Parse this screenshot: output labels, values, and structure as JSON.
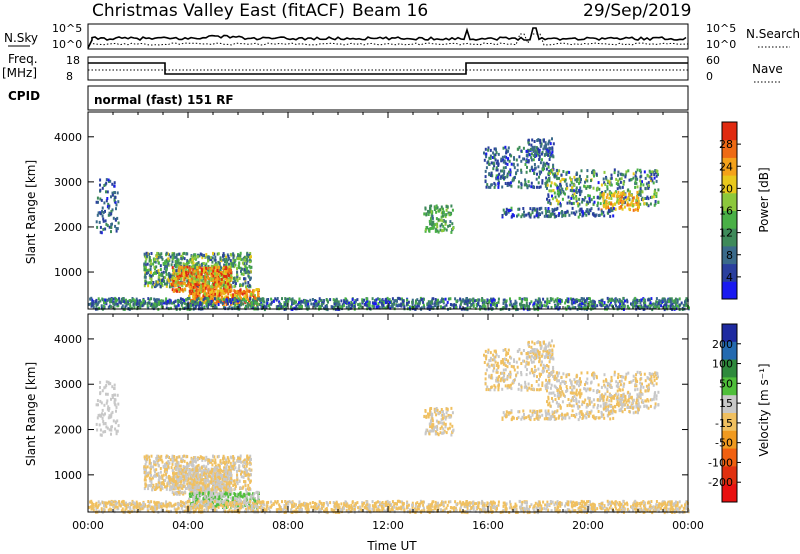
{
  "header": {
    "title": "Christmas Valley East (fitACF)",
    "beam": "Beam 16",
    "date": "29/Sep/2019"
  },
  "top_panels": {
    "nsky": {
      "label": "N.Sky",
      "tick_top": "10^5",
      "tick_bottom": "10^0",
      "right_label": "N.Search",
      "right_tick_top": "10^5",
      "right_tick_bottom": "10^0"
    },
    "freq": {
      "label_line1": "Freq.",
      "label_line2": "[MHz]",
      "tick_top": "18",
      "tick_bottom": "8",
      "right_label": "Nave",
      "right_tick_top": "60",
      "right_tick_bottom": "0"
    },
    "cpid": {
      "label": "CPID",
      "mode_text": "normal (fast) 151 RF"
    }
  },
  "chart_data": [
    {
      "type": "scatter",
      "name": "power-panel",
      "ylabel": "Slant Range [km]",
      "xlabel": "",
      "ylim": [
        180,
        4550
      ],
      "yticks": [
        1000,
        2000,
        3000,
        4000
      ],
      "xlim": [
        0,
        24
      ],
      "colorbar": {
        "label": "Power [dB]",
        "ticks": [
          "4",
          "8",
          "12",
          "16",
          "20",
          "24",
          "28"
        ],
        "colors": [
          "#1a1af0",
          "#2a3f9e",
          "#3a6a8a",
          "#3e8a5a",
          "#49b046",
          "#8cc83c",
          "#e8c81c",
          "#f4a21a",
          "#ee6a14",
          "#e02a10"
        ]
      }
    },
    {
      "type": "scatter",
      "name": "velocity-panel",
      "ylabel": "Slant Range [km]",
      "xlabel": "Time UT",
      "ylim": [
        180,
        4550
      ],
      "yticks": [
        1000,
        2000,
        3000,
        4000
      ],
      "xlim": [
        0,
        24
      ],
      "xticks": [
        "00:00",
        "04:00",
        "08:00",
        "12:00",
        "16:00",
        "20:00",
        "00:00"
      ],
      "colorbar": {
        "label": "Velocity [m s⁻¹]",
        "ticks": [
          "200",
          "100",
          "50",
          "15",
          "-15",
          "-50",
          "-100",
          "-200"
        ],
        "colors": [
          "#1e2aa0",
          "#246ab0",
          "#2e8a3c",
          "#4fbf3a",
          "#c8c8c8",
          "#f0c060",
          "#f09a20",
          "#f06010",
          "#e03010",
          "#e81010"
        ]
      }
    }
  ],
  "regions": [
    {
      "t0": 2.2,
      "t1": 6.5,
      "r0": 700,
      "r1": 1450,
      "pw": [
        6,
        20
      ],
      "vel": [
        -10,
        10
      ],
      "n": 700
    },
    {
      "t0": 3.3,
      "t1": 5.7,
      "r0": 600,
      "r1": 1150,
      "pw": [
        16,
        30
      ],
      "vel": [
        -10,
        10
      ],
      "n": 450
    },
    {
      "t0": 4.0,
      "t1": 6.8,
      "r0": 300,
      "r1": 650,
      "pw": [
        18,
        30
      ],
      "vel": [
        20,
        60
      ],
      "n": 350
    },
    {
      "t0": 0.3,
      "t1": 1.2,
      "r0": 1900,
      "r1": 3100,
      "pw": [
        4,
        12
      ],
      "vel": [
        10,
        40
      ],
      "n": 90
    },
    {
      "t0": 0.0,
      "t1": 24.0,
      "r0": 200,
      "r1": 450,
      "pw": [
        4,
        16
      ],
      "vel": [
        -40,
        20
      ],
      "n": 1500
    },
    {
      "t0": 13.4,
      "t1": 14.6,
      "r0": 1900,
      "r1": 2500,
      "pw": [
        10,
        18
      ],
      "vel": [
        -10,
        10
      ],
      "n": 120
    },
    {
      "t0": 15.8,
      "t1": 18.6,
      "r0": 2900,
      "r1": 3800,
      "pw": [
        4,
        14
      ],
      "vel": [
        -10,
        10
      ],
      "n": 260
    },
    {
      "t0": 17.5,
      "t1": 18.6,
      "r0": 3600,
      "r1": 4000,
      "pw": [
        4,
        12
      ],
      "vel": [
        -10,
        10
      ],
      "n": 80
    },
    {
      "t0": 18.3,
      "t1": 22.8,
      "r0": 2500,
      "r1": 3300,
      "pw": [
        4,
        20
      ],
      "vel": [
        -10,
        10
      ],
      "n": 420
    },
    {
      "t0": 20.5,
      "t1": 22.0,
      "r0": 2400,
      "r1": 2800,
      "pw": [
        18,
        26
      ],
      "vel": [
        -10,
        10
      ],
      "n": 100
    },
    {
      "t0": 16.5,
      "t1": 21.0,
      "r0": 2250,
      "r1": 2450,
      "pw": [
        4,
        14
      ],
      "vel": [
        -10,
        10
      ],
      "n": 160
    }
  ]
}
